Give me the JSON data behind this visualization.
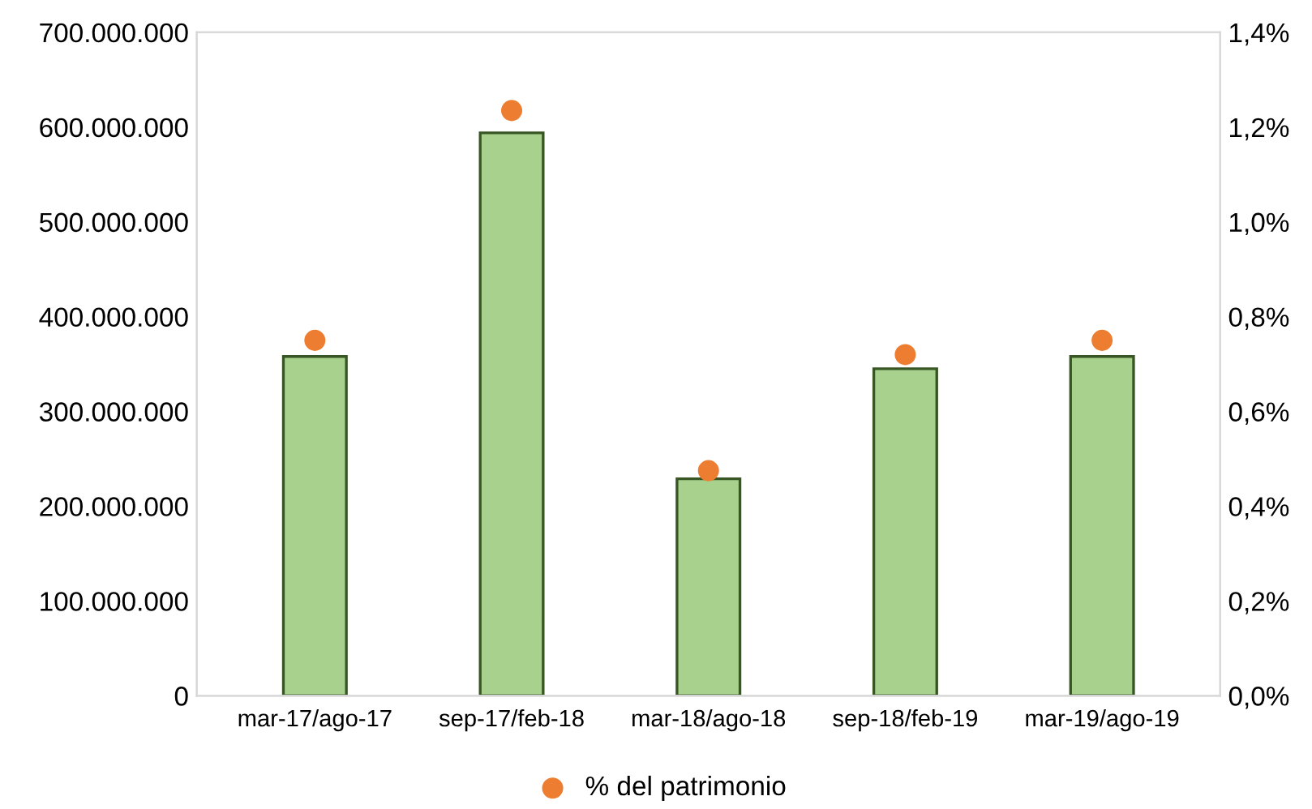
{
  "chart_data": {
    "type": "bar",
    "categories": [
      "mar-17/ago-17",
      "sep-17/feb-18",
      "mar-18/ago-18",
      "sep-18/feb-19",
      "mar-19/ago-19"
    ],
    "series": [
      {
        "color": "#a9d18e",
        "values": [
          358000000,
          594000000,
          229000000,
          345000000,
          358000000
        ]
      },
      {
        "type": "scatter",
        "name": "% del patrimonio",
        "color": "#ed7d31",
        "axis": "y2",
        "values": [
          0.75,
          1.235,
          0.475,
          0.72,
          0.75
        ]
      }
    ],
    "ylim": [
      0,
      700000000
    ],
    "yticks": [
      {
        "value": 0,
        "label": "0"
      },
      {
        "value": 100000000,
        "label": "100.000.000"
      },
      {
        "value": 200000000,
        "label": "200.000.000"
      },
      {
        "value": 300000000,
        "label": "300.000.000"
      },
      {
        "value": 400000000,
        "label": "400.000.000"
      },
      {
        "value": 500000000,
        "label": "500.000.000"
      },
      {
        "value": 600000000,
        "label": "600.000.000"
      },
      {
        "value": 700000000,
        "label": "700.000.000"
      }
    ],
    "y2lim": [
      0,
      1.4
    ],
    "y2ticks": [
      {
        "value": 0,
        "label": "0,0%"
      },
      {
        "value": 0.2,
        "label": "0,2%"
      },
      {
        "value": 0.4,
        "label": "0,4%"
      },
      {
        "value": 0.6,
        "label": "0,6%"
      },
      {
        "value": 0.8,
        "label": "0,8%"
      },
      {
        "value": 1.0,
        "label": "1,0%"
      },
      {
        "value": 1.2,
        "label": "1,2%"
      },
      {
        "value": 1.4,
        "label": "1,4%"
      }
    ],
    "grid": false,
    "legend": "bottom",
    "marker": "circle"
  }
}
